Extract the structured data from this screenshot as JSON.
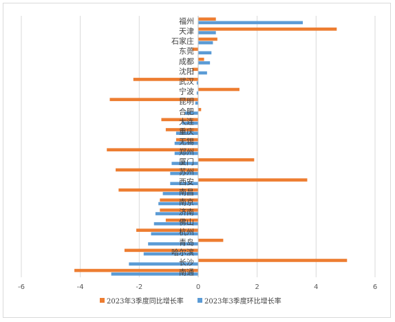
{
  "chart_data": {
    "type": "bar",
    "orientation": "horizontal",
    "title": "",
    "xlabel": "",
    "ylabel": "",
    "xlim": [
      -6,
      6
    ],
    "x_ticks": [
      -6,
      -4,
      -2,
      0,
      2,
      4,
      6
    ],
    "grid": "vertical",
    "legend_position": "bottom",
    "categories": [
      "福州",
      "天津",
      "石家庄",
      "东莞",
      "成都",
      "沈阳",
      "武汉",
      "宁波",
      "昆明",
      "合肥",
      "大连",
      "重庆",
      "无锡",
      "郑州",
      "厦门",
      "苏州",
      "西安",
      "南昌",
      "南京",
      "济南",
      "佛山",
      "杭州",
      "青岛",
      "哈尔滨",
      "长沙",
      "南通"
    ],
    "series": [
      {
        "name": "2023年3季度同比增长率",
        "color": "#ED7D31",
        "values": [
          0.6,
          4.7,
          0.65,
          -0.2,
          0.2,
          -0.2,
          -2.2,
          1.4,
          -3.0,
          0.1,
          -1.25,
          -1.1,
          -0.75,
          -3.1,
          1.9,
          -2.8,
          3.7,
          -2.7,
          -1.3,
          -1.3,
          -1.1,
          -2.1,
          0.85,
          -2.5,
          5.05,
          -4.2
        ]
      },
      {
        "name": "2023年3季度环比增长率",
        "color": "#5B9BD5",
        "values": [
          3.55,
          0.6,
          0.5,
          0.45,
          0.4,
          0.3,
          -0.05,
          -0.05,
          -0.1,
          -0.45,
          -0.55,
          -0.75,
          -0.8,
          -0.8,
          -0.9,
          -0.95,
          -0.95,
          -1.2,
          -1.35,
          -1.45,
          -1.5,
          -1.6,
          -1.7,
          -1.85,
          -2.35,
          -2.95
        ]
      }
    ]
  }
}
